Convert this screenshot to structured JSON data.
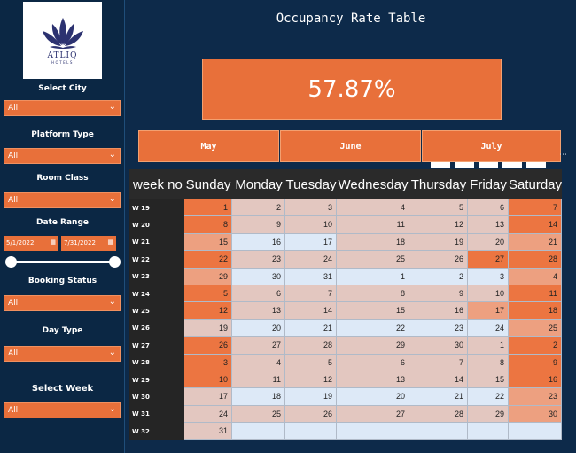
{
  "logo": {
    "brand": "ATLIQ",
    "subtitle": "HOTELS"
  },
  "filters": {
    "city": {
      "label": "Select City",
      "value": "All"
    },
    "platform": {
      "label": "Platform Type",
      "value": "All"
    },
    "room_class": {
      "label": "Room Class",
      "value": "All"
    },
    "date_range": {
      "label": "Date Range",
      "start": "5/1/2022",
      "end": "7/31/2022"
    },
    "booking_status": {
      "label": "Booking Status",
      "value": "All"
    },
    "day_type": {
      "label": "Day Type",
      "value": "All"
    },
    "week": {
      "label": "Select Week",
      "value": "All"
    }
  },
  "page_title": "Occupancy Rate Table",
  "kpi_value": "57.87%",
  "months": [
    "May",
    "June",
    "July"
  ],
  "table": {
    "headers": [
      "week no",
      "Sunday",
      "Monday",
      "Tuesday",
      "Wednesday",
      "Thursday",
      "Friday",
      "Saturday"
    ],
    "rows": [
      {
        "week": "W 19",
        "days": [
          "1",
          "2",
          "3",
          "4",
          "5",
          "6",
          "7"
        ],
        "shade": [
          3,
          1,
          1,
          1,
          1,
          1,
          3
        ]
      },
      {
        "week": "W 20",
        "days": [
          "8",
          "9",
          "10",
          "11",
          "12",
          "13",
          "14"
        ],
        "shade": [
          3,
          1,
          1,
          1,
          1,
          1,
          3
        ]
      },
      {
        "week": "W 21",
        "days": [
          "15",
          "16",
          "17",
          "18",
          "19",
          "20",
          "21"
        ],
        "shade": [
          2,
          0,
          0,
          1,
          1,
          1,
          2
        ]
      },
      {
        "week": "W 22",
        "days": [
          "22",
          "23",
          "24",
          "25",
          "26",
          "27",
          "28"
        ],
        "shade": [
          3,
          1,
          1,
          1,
          1,
          3,
          3
        ]
      },
      {
        "week": "W 23",
        "days": [
          "29",
          "30",
          "31",
          "1",
          "2",
          "3",
          "4"
        ],
        "shade": [
          2,
          0,
          0,
          0,
          0,
          0,
          2
        ]
      },
      {
        "week": "W 24",
        "days": [
          "5",
          "6",
          "7",
          "8",
          "9",
          "10",
          "11"
        ],
        "shade": [
          3,
          1,
          1,
          1,
          1,
          1,
          3
        ]
      },
      {
        "week": "W 25",
        "days": [
          "12",
          "13",
          "14",
          "15",
          "16",
          "17",
          "18"
        ],
        "shade": [
          3,
          1,
          1,
          1,
          1,
          2,
          3
        ]
      },
      {
        "week": "W 26",
        "days": [
          "19",
          "20",
          "21",
          "22",
          "23",
          "24",
          "25"
        ],
        "shade": [
          1,
          0,
          0,
          0,
          0,
          0,
          2
        ]
      },
      {
        "week": "W 27",
        "days": [
          "26",
          "27",
          "28",
          "29",
          "30",
          "1",
          "2"
        ],
        "shade": [
          3,
          1,
          1,
          1,
          1,
          1,
          3
        ]
      },
      {
        "week": "W 28",
        "days": [
          "3",
          "4",
          "5",
          "6",
          "7",
          "8",
          "9"
        ],
        "shade": [
          3,
          1,
          1,
          1,
          1,
          1,
          3
        ]
      },
      {
        "week": "W 29",
        "days": [
          "10",
          "11",
          "12",
          "13",
          "14",
          "15",
          "16"
        ],
        "shade": [
          3,
          1,
          1,
          1,
          1,
          1,
          3
        ]
      },
      {
        "week": "W 30",
        "days": [
          "17",
          "18",
          "19",
          "20",
          "21",
          "22",
          "23"
        ],
        "shade": [
          1,
          0,
          0,
          0,
          0,
          0,
          2
        ]
      },
      {
        "week": "W 31",
        "days": [
          "24",
          "25",
          "26",
          "27",
          "28",
          "29",
          "30"
        ],
        "shade": [
          1,
          1,
          1,
          1,
          1,
          1,
          2
        ]
      },
      {
        "week": "W 32",
        "days": [
          "31",
          "",
          "",
          "",
          "",
          "",
          ""
        ],
        "shade": [
          1,
          0,
          0,
          0,
          0,
          0,
          0
        ]
      }
    ]
  },
  "colors": {
    "background": "#0d2a4a",
    "accent": "#e8703a",
    "shade_0": "#dde9f7",
    "shade_1": "#e3c7c0",
    "shade_2": "#eda080",
    "shade_3": "#ec7541"
  }
}
